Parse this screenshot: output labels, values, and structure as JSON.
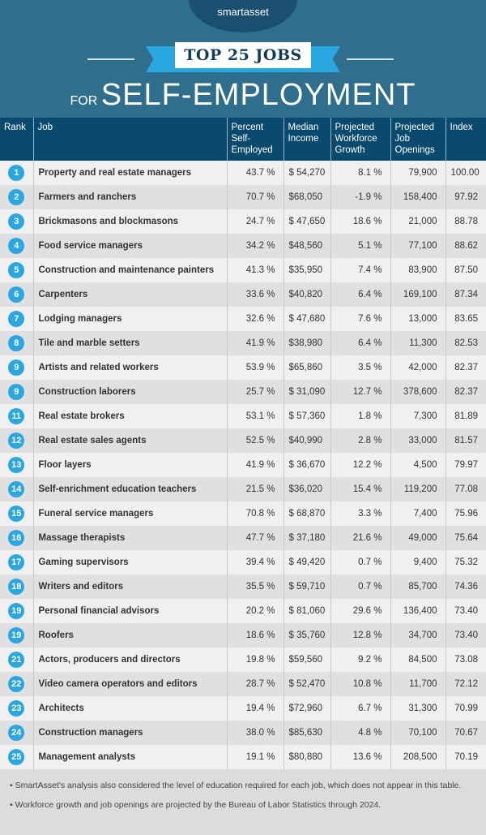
{
  "header": {
    "logo": "smartasset",
    "banner": "TOP 25 JOBS",
    "subtitle_small": "FOR",
    "subtitle_big": "SELF-EMPLOYMENT",
    "colors": {
      "background": "#2f6f8d",
      "header_row": "#0a4a6e",
      "accent": "#2aa6e0"
    }
  },
  "table": {
    "columns": [
      "Rank",
      "Job",
      "Percent Self-Employed",
      "Median Income",
      "Projected Workforce Growth",
      "Projected Job Openings",
      "Index"
    ],
    "rows": [
      [
        "1",
        "Property and real estate managers",
        "43.7 %",
        "$ 54,270",
        "8.1 %",
        "79,900",
        "100.00"
      ],
      [
        "2",
        "Farmers and ranchers",
        "70.7 %",
        "$68,050",
        "-1.9 %",
        "158,400",
        "97.92"
      ],
      [
        "3",
        "Brickmasons and blockmasons",
        "24.7 %",
        "$ 47,650",
        "18.6 %",
        "21,000",
        "88.78"
      ],
      [
        "4",
        "Food service managers",
        "34.2 %",
        "$48,560",
        "5.1 %",
        "77,100",
        "88.62"
      ],
      [
        "5",
        "Construction and maintenance painters",
        "41.3 %",
        "$35,950",
        "7.4 %",
        "83,900",
        "87.50"
      ],
      [
        "6",
        "Carpenters",
        "33.6 %",
        "$40,820",
        "6.4 %",
        "169,100",
        "87.34"
      ],
      [
        "7",
        "Lodging managers",
        "32.6 %",
        "$ 47,680",
        "7.6 %",
        "13,000",
        "83.65"
      ],
      [
        "8",
        "Tile and marble setters",
        "41.9 %",
        "$38,980",
        "6.4 %",
        "11,300",
        "82.53"
      ],
      [
        "9",
        "Artists and related workers",
        "53.9 %",
        "$65,860",
        "3.5 %",
        "42,000",
        "82.37"
      ],
      [
        "9",
        "Construction laborers",
        "25.7 %",
        "$ 31,090",
        "12.7 %",
        "378,600",
        "82.37"
      ],
      [
        "11",
        "Real estate brokers",
        "53.1 %",
        "$ 57,360",
        "1.8 %",
        "7,300",
        "81.89"
      ],
      [
        "12",
        "Real estate sales agents",
        "52.5 %",
        "$40,990",
        "2.8 %",
        "33,000",
        "81.57"
      ],
      [
        "13",
        "Floor layers",
        "41.9 %",
        "$ 36,670",
        "12.2 %",
        "4,500",
        "79.97"
      ],
      [
        "14",
        "Self-enrichment education teachers",
        "21.5 %",
        "$36,020",
        "15.4 %",
        "119,200",
        "77.08"
      ],
      [
        "15",
        "Funeral service managers",
        "70.8 %",
        "$ 68,870",
        "3.3 %",
        "7,400",
        "75.96"
      ],
      [
        "16",
        "Massage therapists",
        "47.7 %",
        "$  37,180",
        "21.6 %",
        "49,000",
        "75.64"
      ],
      [
        "17",
        "Gaming supervisors",
        "39.4 %",
        "$ 49,420",
        "0.7 %",
        "9,400",
        "75.32"
      ],
      [
        "18",
        "Writers and editors",
        "35.5 %",
        "$  59,710",
        "0.7 %",
        "85,700",
        "74.36"
      ],
      [
        "19",
        "Personal financial advisors",
        "20.2 %",
        "$ 81,060",
        "29.6 %",
        "136,400",
        "73.40"
      ],
      [
        "19",
        "Roofers",
        "18.6 %",
        "$ 35,760",
        "12.8 %",
        "34,700",
        "73.40"
      ],
      [
        "21",
        "Actors, producers and directors",
        "19.8 %",
        "$59,560",
        "9.2 %",
        "84,500",
        "73.08"
      ],
      [
        "22",
        "Video camera operators and editors",
        "28.7 %",
        "$ 52,470",
        "10.8 %",
        "11,700",
        "72.12"
      ],
      [
        "23",
        "Architects",
        "19.4 %",
        "$72,960",
        "6.7 %",
        "31,300",
        "70.99"
      ],
      [
        "24",
        "Construction managers",
        "38.0 %",
        "$85,630",
        "4.8 %",
        "70,100",
        "70.67"
      ],
      [
        "25",
        "Management analysts",
        "19.1 %",
        "$80,880",
        "13.6 %",
        "208,500",
        "70.19"
      ]
    ]
  },
  "notes": [
    "SmartAsset's analysis also considered the level of education required for each job, which does not appear in this table.",
    "Workforce growth and job openings are projected by the Bureau of Labor Statistics through 2024."
  ]
}
